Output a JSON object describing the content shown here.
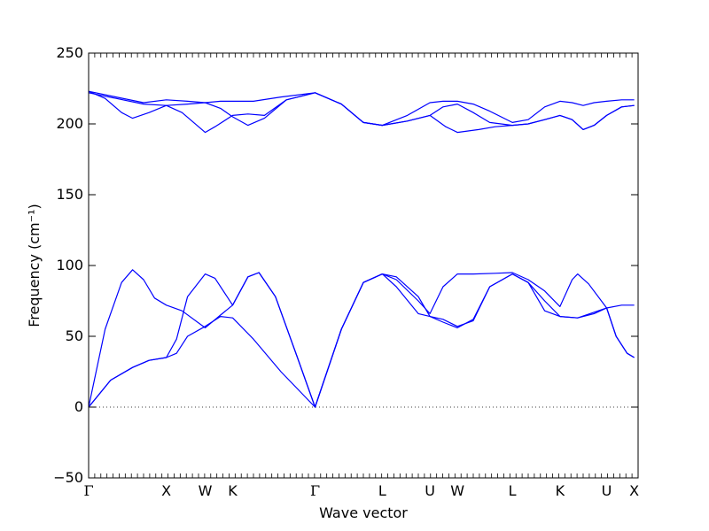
{
  "chart_data": {
    "type": "line",
    "title": "",
    "xlabel": "Wave vector",
    "ylabel": "Frequency (cm⁻¹)",
    "ylim": [
      -50,
      250
    ],
    "yticks": [
      -50,
      0,
      50,
      100,
      150,
      200,
      250
    ],
    "xlim": [
      0,
      10
    ],
    "high_symmetry_points": [
      {
        "label": "Γ",
        "x": 0.0
      },
      {
        "label": "X",
        "x": 1.414
      },
      {
        "label": "W",
        "x": 2.121
      },
      {
        "label": "K",
        "x": 2.621
      },
      {
        "label": "Γ",
        "x": 4.121
      },
      {
        "label": "L",
        "x": 5.345
      },
      {
        "label": "U",
        "x": 6.212
      },
      {
        "label": "W",
        "x": 6.712
      },
      {
        "label": "L",
        "x": 7.712
      },
      {
        "label": "K",
        "x": 8.578
      },
      {
        "label": "U",
        "x": 9.428
      },
      {
        "label": "X",
        "x": 9.93
      }
    ],
    "zero_line": {
      "y": 0,
      "style": "dotted"
    },
    "line_color": "#0000ff",
    "series": [
      {
        "points": [
          [
            0,
            0
          ],
          [
            0.4,
            19
          ],
          [
            0.8,
            28
          ],
          [
            1.1,
            33
          ],
          [
            1.414,
            35
          ],
          [
            1.6,
            38
          ],
          [
            1.8,
            50
          ],
          [
            2.121,
            57
          ],
          [
            2.4,
            64
          ],
          [
            2.621,
            63
          ],
          [
            3.0,
            48
          ],
          [
            3.5,
            25
          ],
          [
            4.121,
            0
          ],
          [
            4.6,
            55
          ],
          [
            5.0,
            88
          ],
          [
            5.345,
            94
          ],
          [
            5.6,
            85
          ],
          [
            6.0,
            66
          ],
          [
            6.212,
            64
          ],
          [
            6.45,
            60
          ],
          [
            6.712,
            56
          ],
          [
            7.0,
            62
          ],
          [
            7.3,
            85
          ],
          [
            7.712,
            94
          ],
          [
            8.0,
            88
          ],
          [
            8.3,
            68
          ],
          [
            8.578,
            64
          ],
          [
            8.9,
            63
          ],
          [
            9.2,
            67
          ],
          [
            9.428,
            70
          ],
          [
            9.6,
            50
          ],
          [
            9.8,
            38
          ],
          [
            9.93,
            35
          ]
        ]
      },
      {
        "points": [
          [
            0,
            0
          ],
          [
            0.4,
            19
          ],
          [
            0.8,
            28
          ],
          [
            1.1,
            33
          ],
          [
            1.414,
            35
          ],
          [
            1.6,
            48
          ],
          [
            1.8,
            78
          ],
          [
            2.121,
            94
          ],
          [
            2.3,
            91
          ],
          [
            2.621,
            72
          ],
          [
            2.9,
            92
          ],
          [
            3.1,
            95
          ],
          [
            3.4,
            78
          ],
          [
            3.8,
            35
          ],
          [
            4.121,
            0
          ],
          [
            4.6,
            55
          ],
          [
            5.0,
            88
          ],
          [
            5.345,
            94
          ],
          [
            5.6,
            92
          ],
          [
            6.0,
            78
          ],
          [
            6.212,
            64
          ],
          [
            6.45,
            62
          ],
          [
            6.712,
            57
          ],
          [
            7.0,
            61
          ],
          [
            7.3,
            85
          ],
          [
            7.712,
            94
          ],
          [
            8.0,
            88
          ],
          [
            8.3,
            75
          ],
          [
            8.578,
            64
          ],
          [
            8.9,
            63
          ],
          [
            9.2,
            66
          ],
          [
            9.428,
            70
          ],
          [
            9.6,
            50
          ],
          [
            9.8,
            38
          ],
          [
            9.93,
            35
          ]
        ]
      },
      {
        "points": [
          [
            0,
            0
          ],
          [
            0.3,
            55
          ],
          [
            0.6,
            88
          ],
          [
            0.8,
            97
          ],
          [
            1.0,
            90
          ],
          [
            1.2,
            77
          ],
          [
            1.414,
            72
          ],
          [
            1.7,
            68
          ],
          [
            2.121,
            56
          ],
          [
            2.4,
            65
          ],
          [
            2.621,
            72
          ],
          [
            2.9,
            92
          ],
          [
            3.1,
            95
          ],
          [
            3.4,
            78
          ],
          [
            3.8,
            35
          ],
          [
            4.121,
            0
          ],
          [
            4.6,
            55
          ],
          [
            5.0,
            88
          ],
          [
            5.345,
            94
          ],
          [
            5.6,
            90
          ],
          [
            6.0,
            75
          ],
          [
            6.212,
            66
          ],
          [
            6.45,
            85
          ],
          [
            6.712,
            94
          ],
          [
            7.0,
            94
          ],
          [
            7.4,
            94.5
          ],
          [
            7.712,
            95
          ],
          [
            8.0,
            90
          ],
          [
            8.3,
            82
          ],
          [
            8.578,
            71
          ],
          [
            8.8,
            90
          ],
          [
            8.9,
            94
          ],
          [
            9.1,
            87
          ],
          [
            9.428,
            70
          ],
          [
            9.7,
            72
          ],
          [
            9.93,
            72
          ]
        ]
      },
      {
        "points": [
          [
            0,
            222
          ],
          [
            0.5,
            218
          ],
          [
            1.0,
            214
          ],
          [
            1.414,
            213
          ],
          [
            1.8,
            214
          ],
          [
            2.121,
            215
          ],
          [
            2.4,
            211
          ],
          [
            2.621,
            205
          ],
          [
            2.9,
            199
          ],
          [
            3.2,
            204
          ],
          [
            3.6,
            217
          ],
          [
            4.121,
            222
          ],
          [
            4.6,
            214
          ],
          [
            5.0,
            201
          ],
          [
            5.345,
            199
          ],
          [
            5.8,
            202
          ],
          [
            6.212,
            206
          ],
          [
            6.45,
            212
          ],
          [
            6.712,
            214
          ],
          [
            7.0,
            208
          ],
          [
            7.3,
            201
          ],
          [
            7.712,
            199
          ],
          [
            8.0,
            200
          ],
          [
            8.3,
            203
          ],
          [
            8.578,
            206
          ],
          [
            8.8,
            203
          ],
          [
            9.0,
            196
          ],
          [
            9.2,
            199
          ],
          [
            9.428,
            206
          ],
          [
            9.7,
            212
          ],
          [
            9.93,
            213
          ]
        ]
      },
      {
        "points": [
          [
            0,
            223
          ],
          [
            0.3,
            218
          ],
          [
            0.6,
            208
          ],
          [
            0.8,
            204
          ],
          [
            1.1,
            208
          ],
          [
            1.414,
            213
          ],
          [
            1.7,
            208
          ],
          [
            2.121,
            194
          ],
          [
            2.3,
            198
          ],
          [
            2.621,
            206
          ],
          [
            2.9,
            207
          ],
          [
            3.2,
            206
          ],
          [
            3.6,
            217
          ],
          [
            4.121,
            222
          ],
          [
            4.6,
            214
          ],
          [
            5.0,
            201
          ],
          [
            5.345,
            199
          ],
          [
            5.8,
            202
          ],
          [
            6.212,
            206
          ],
          [
            6.5,
            198
          ],
          [
            6.712,
            194
          ],
          [
            7.1,
            196
          ],
          [
            7.4,
            198
          ],
          [
            7.712,
            199
          ],
          [
            8.0,
            200
          ],
          [
            8.3,
            203
          ],
          [
            8.578,
            206
          ],
          [
            8.8,
            203
          ],
          [
            9.0,
            196
          ],
          [
            9.2,
            199
          ],
          [
            9.428,
            206
          ],
          [
            9.7,
            212
          ],
          [
            9.93,
            213
          ]
        ]
      },
      {
        "points": [
          [
            0,
            223
          ],
          [
            0.5,
            219
          ],
          [
            1.0,
            215
          ],
          [
            1.414,
            217
          ],
          [
            1.8,
            216
          ],
          [
            2.121,
            215
          ],
          [
            2.4,
            216
          ],
          [
            2.621,
            216
          ],
          [
            3.0,
            216
          ],
          [
            3.5,
            219
          ],
          [
            4.121,
            222
          ],
          [
            4.6,
            214
          ],
          [
            5.0,
            201
          ],
          [
            5.345,
            199
          ],
          [
            5.8,
            206
          ],
          [
            6.212,
            215
          ],
          [
            6.45,
            216
          ],
          [
            6.712,
            216
          ],
          [
            7.0,
            214
          ],
          [
            7.3,
            209
          ],
          [
            7.712,
            201
          ],
          [
            8.0,
            203
          ],
          [
            8.3,
            212
          ],
          [
            8.578,
            216
          ],
          [
            8.8,
            215
          ],
          [
            9.0,
            213
          ],
          [
            9.2,
            215
          ],
          [
            9.428,
            216
          ],
          [
            9.7,
            217
          ],
          [
            9.93,
            217
          ]
        ]
      }
    ]
  }
}
